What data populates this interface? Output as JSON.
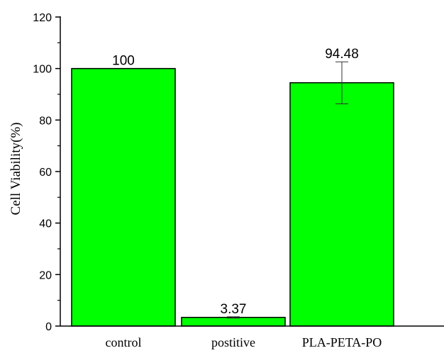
{
  "chart_data": {
    "type": "bar",
    "categories": [
      "control",
      "postitive",
      "PLA-PETA-PO"
    ],
    "values": [
      100,
      3.37,
      94.48
    ],
    "data_labels": [
      "100",
      "3.37",
      "94.48"
    ],
    "error_low": [
      100,
      3.1,
      86.3
    ],
    "error_high": [
      100,
      3.6,
      102.6
    ],
    "ylabel": "Cell Viability(%)",
    "xlabel": "",
    "title": "",
    "ylim": [
      0,
      120
    ],
    "yticks": [
      0,
      20,
      40,
      60,
      80,
      100,
      120
    ],
    "bar_color": "#00ff00",
    "bar_edge_color": "#000000",
    "grid": false,
    "legend": "none"
  }
}
